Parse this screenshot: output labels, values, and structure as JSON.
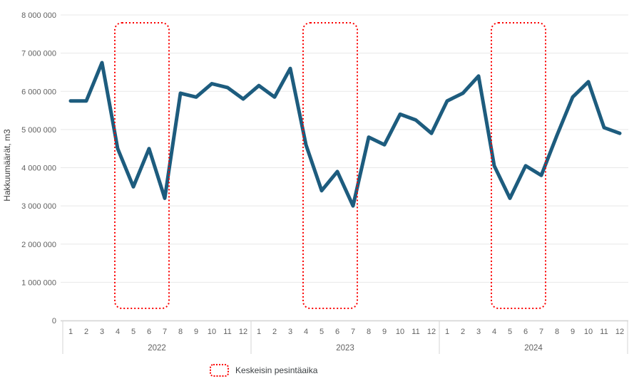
{
  "chart_data": {
    "type": "line",
    "title": "",
    "xlabel": "",
    "ylabel": "Hakkuumäärät, m3",
    "ylim": [
      0,
      8000000
    ],
    "grid": true,
    "legend_position": "bottom",
    "y_ticks": [
      0,
      1000000,
      2000000,
      3000000,
      4000000,
      5000000,
      6000000,
      7000000,
      8000000
    ],
    "y_tick_labels": [
      "0",
      "1 000 000",
      "2 000 000",
      "3 000 000",
      "4 000 000",
      "5 000 000",
      "6 000 000",
      "7 000 000",
      "8 000 000"
    ],
    "month_labels": [
      "1",
      "2",
      "3",
      "4",
      "5",
      "6",
      "7",
      "8",
      "9",
      "10",
      "11",
      "12"
    ],
    "years": [
      "2022",
      "2023",
      "2024"
    ],
    "series": [
      {
        "name": "Hakkuumäärät, m3",
        "color": "#1d5c7e",
        "values": [
          5750000,
          5750000,
          6750000,
          4500000,
          3500000,
          4500000,
          3200000,
          5950000,
          5850000,
          6200000,
          6100000,
          5800000,
          6150000,
          5850000,
          6600000,
          4600000,
          3400000,
          3900000,
          3000000,
          4800000,
          4600000,
          5400000,
          5250000,
          4900000,
          5750000,
          5950000,
          6400000,
          4050000,
          3200000,
          4050000,
          3800000,
          4850000,
          5850000,
          6250000,
          5050000,
          4900000
        ]
      }
    ],
    "highlight_regions": [
      {
        "year": "2022",
        "start_month": 4,
        "end_month": 7
      },
      {
        "year": "2023",
        "start_month": 4,
        "end_month": 7
      },
      {
        "year": "2024",
        "start_month": 4,
        "end_month": 7
      }
    ],
    "annotations": []
  },
  "legend": {
    "label": "Keskeisin pesintäaika"
  },
  "colors": {
    "line": "#1d5c7e",
    "highlight_border": "#fb0000",
    "gridline": "#e8e8e8",
    "axis_line": "#d6d6d6",
    "tick_text": "#616161",
    "axis_title_text": "#404040",
    "legend_text": "#3c4043",
    "background": "#ffffff"
  }
}
